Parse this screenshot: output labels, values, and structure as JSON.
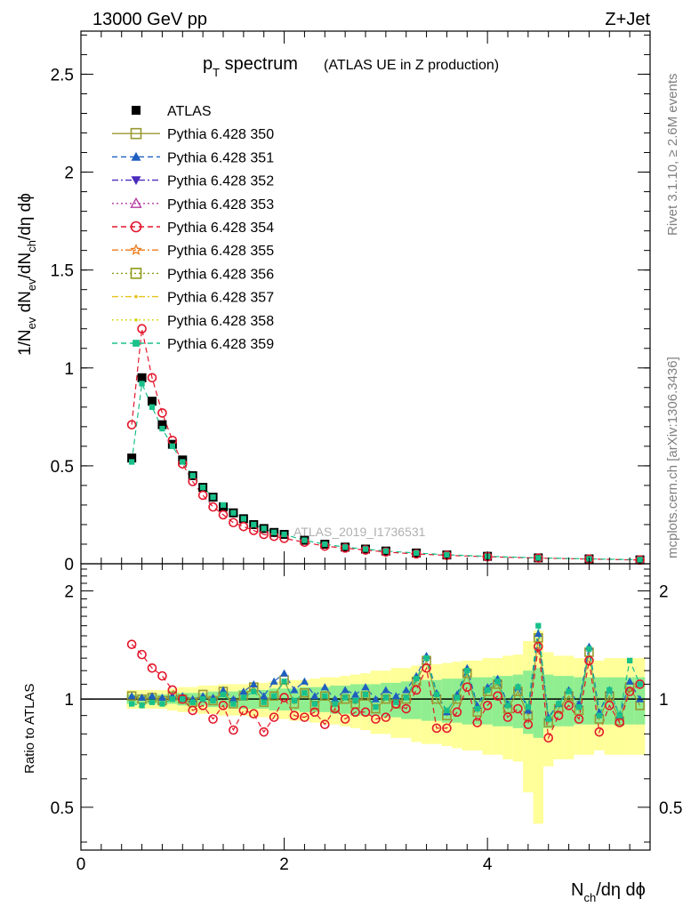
{
  "header": {
    "left": "13000 GeV pp",
    "right": "Z+Jet"
  },
  "title": {
    "main": "p",
    "main_sub": "T",
    "main_rest": " spectrum",
    "paren": "(ATLAS UE in Z production)"
  },
  "side_labels": {
    "rivet": "Rivet 3.1.10, ≥ 2.6M events",
    "mcplots": "mcplots.cern.ch [arXiv:1306.3436]"
  },
  "watermark": "ATLAS_2019_I1736531",
  "axes": {
    "top_ylabel": "1/N_{ev} dN_{ev}/dN_{ch}/dη dϕ",
    "bottom_ylabel": "Ratio to ATLAS",
    "xlabel_main": "N",
    "xlabel_sub": "ch",
    "xlabel_rest": "/dη dϕ",
    "top_yticks": [
      "0",
      "0.5",
      "1",
      "1.5",
      "2",
      "2.5"
    ],
    "bottom_yticks_left": [
      "0.5",
      "1",
      "2"
    ],
    "bottom_yticks_right": [
      "0.5",
      "1",
      "2"
    ],
    "xticks": [
      "0",
      "2",
      "4"
    ]
  },
  "legend": [
    {
      "label": "ATLAS",
      "color": "#000000",
      "marker": "filled-square",
      "line": "none"
    },
    {
      "label": "Pythia 6.428 350",
      "color": "#999933",
      "marker": "open-square",
      "line": "solid"
    },
    {
      "label": "Pythia 6.428 351",
      "color": "#1f5fbf",
      "marker": "filled-triangle-up",
      "line": "dashed"
    },
    {
      "label": "Pythia 6.428 352",
      "color": "#4b2bbd",
      "marker": "filled-triangle-down",
      "line": "dashdot"
    },
    {
      "label": "Pythia 6.428 353",
      "color": "#b43aa0",
      "marker": "open-triangle-up",
      "line": "dotted"
    },
    {
      "label": "Pythia 6.428 354",
      "color": "#e3162b",
      "marker": "open-circle",
      "line": "dashed"
    },
    {
      "label": "Pythia 6.428 355",
      "color": "#ef7b1a",
      "marker": "open-star",
      "line": "dashdot"
    },
    {
      "label": "Pythia 6.428 356",
      "color": "#8e9a1a",
      "marker": "open-square",
      "line": "dotted"
    },
    {
      "label": "Pythia 6.428 357",
      "color": "#e6c11c",
      "marker": "small-dot",
      "line": "dashdot"
    },
    {
      "label": "Pythia 6.428 358",
      "color": "#d7d81a",
      "marker": "small-dot",
      "line": "dotted"
    },
    {
      "label": "Pythia 6.428 359",
      "color": "#19c08a",
      "marker": "filled-square-small",
      "line": "dashed"
    }
  ],
  "chart_data": [
    {
      "type": "line",
      "panel": "main",
      "xlim": [
        0,
        5.6
      ],
      "ylim": [
        0,
        2.72
      ],
      "x": [
        0.5,
        0.6,
        0.7,
        0.8,
        0.9,
        1.0,
        1.1,
        1.2,
        1.3,
        1.4,
        1.5,
        1.6,
        1.7,
        1.8,
        1.9,
        2.0,
        2.2,
        2.4,
        2.6,
        2.8,
        3.0,
        3.3,
        3.6,
        4.0,
        4.5,
        5.0,
        5.5
      ],
      "series": [
        {
          "name": "ATLAS",
          "values": [
            0.54,
            0.95,
            0.83,
            0.71,
            0.61,
            0.53,
            0.45,
            0.39,
            0.34,
            0.29,
            0.26,
            0.23,
            0.2,
            0.18,
            0.16,
            0.15,
            0.12,
            0.1,
            0.085,
            0.075,
            0.065,
            0.055,
            0.045,
            0.038,
            0.03,
            0.025,
            0.02
          ]
        },
        {
          "name": "Pythia 6.428 354",
          "values": [
            0.71,
            1.2,
            0.95,
            0.77,
            0.63,
            0.51,
            0.42,
            0.35,
            0.29,
            0.25,
            0.21,
            0.19,
            0.17,
            0.15,
            0.14,
            0.13,
            0.11,
            0.09,
            0.08,
            0.07,
            0.06,
            0.05,
            0.043,
            0.036,
            0.029,
            0.024,
            0.019
          ]
        },
        {
          "name": "Pythia 6.428 359",
          "values": [
            0.52,
            0.92,
            0.8,
            0.69,
            0.6,
            0.52,
            0.45,
            0.39,
            0.34,
            0.3,
            0.26,
            0.23,
            0.2,
            0.18,
            0.16,
            0.15,
            0.12,
            0.1,
            0.085,
            0.075,
            0.065,
            0.055,
            0.046,
            0.038,
            0.03,
            0.025,
            0.021
          ]
        }
      ]
    },
    {
      "type": "line",
      "panel": "ratio",
      "xlim": [
        0,
        5.6
      ],
      "ylim": [
        0.38,
        2.38
      ],
      "log_y": true,
      "reference": 1,
      "x": [
        0.5,
        0.6,
        0.7,
        0.8,
        0.9,
        1.0,
        1.1,
        1.2,
        1.3,
        1.4,
        1.5,
        1.6,
        1.7,
        1.8,
        1.9,
        2.0,
        2.1,
        2.2,
        2.3,
        2.4,
        2.5,
        2.6,
        2.7,
        2.8,
        2.9,
        3.0,
        3.1,
        3.2,
        3.3,
        3.4,
        3.5,
        3.6,
        3.7,
        3.8,
        3.9,
        4.0,
        4.1,
        4.2,
        4.3,
        4.4,
        4.5,
        4.6,
        4.7,
        4.8,
        4.9,
        5.0,
        5.1,
        5.2,
        5.3,
        5.4,
        5.5
      ],
      "band_outer": [
        0.06,
        0.06,
        0.06,
        0.06,
        0.07,
        0.08,
        0.08,
        0.09,
        0.09,
        0.1,
        0.1,
        0.1,
        0.11,
        0.11,
        0.12,
        0.12,
        0.13,
        0.13,
        0.14,
        0.15,
        0.15,
        0.16,
        0.17,
        0.18,
        0.2,
        0.2,
        0.22,
        0.22,
        0.24,
        0.25,
        0.25,
        0.26,
        0.27,
        0.28,
        0.28,
        0.3,
        0.3,
        0.32,
        0.33,
        0.45,
        0.55,
        0.35,
        0.32,
        0.32,
        0.3,
        0.3,
        0.28,
        0.3,
        0.3,
        0.3,
        0.3
      ],
      "band_inner": [
        0.03,
        0.03,
        0.03,
        0.03,
        0.03,
        0.04,
        0.04,
        0.04,
        0.05,
        0.05,
        0.05,
        0.06,
        0.06,
        0.06,
        0.07,
        0.07,
        0.07,
        0.08,
        0.08,
        0.08,
        0.09,
        0.09,
        0.1,
        0.1,
        0.1,
        0.11,
        0.11,
        0.12,
        0.12,
        0.13,
        0.13,
        0.14,
        0.14,
        0.15,
        0.15,
        0.15,
        0.16,
        0.16,
        0.17,
        0.2,
        0.22,
        0.17,
        0.16,
        0.16,
        0.15,
        0.15,
        0.15,
        0.15,
        0.15,
        0.15,
        0.15
      ],
      "series": [
        {
          "name": "Pythia 6.428 350",
          "values": [
            1.02,
            1.0,
            1.01,
            0.99,
            1.02,
            1.0,
            0.98,
            1.03,
            0.99,
            1.05,
            0.97,
            1.02,
            1.08,
            0.98,
            1.02,
            1.13,
            0.97,
            1.04,
            0.96,
            1.02,
            0.95,
            1.0,
            0.97,
            1.02,
            0.94,
            1.0,
            0.97,
            1.0,
            1.12,
            1.28,
            1.0,
            0.9,
            1.0,
            1.18,
            0.92,
            1.05,
            1.1,
            0.94,
            1.05,
            0.9,
            1.48,
            0.86,
            0.94,
            1.02,
            0.93,
            1.35,
            0.88,
            1.02,
            0.87,
            1.08,
            0.96
          ]
        },
        {
          "name": "Pythia 6.428 351",
          "values": [
            1.02,
            1.01,
            1.02,
            1.01,
            1.02,
            1.02,
            1.0,
            1.02,
            1.01,
            1.06,
            1.0,
            1.05,
            1.1,
            1.02,
            1.12,
            1.18,
            1.06,
            1.12,
            1.02,
            1.08,
            1.0,
            1.06,
            1.03,
            1.08,
            1.0,
            1.06,
            1.02,
            1.06,
            1.16,
            1.32,
            1.04,
            0.92,
            1.03,
            1.22,
            0.96,
            1.08,
            1.14,
            0.97,
            1.08,
            0.93,
            1.52,
            0.89,
            0.97,
            1.06,
            0.97,
            1.4,
            0.92,
            1.06,
            0.9,
            1.12,
            1.0
          ]
        },
        {
          "name": "Pythia 6.428 354",
          "values": [
            1.42,
            1.33,
            1.22,
            1.16,
            1.06,
            1.0,
            0.93,
            0.96,
            0.88,
            0.96,
            0.82,
            0.93,
            0.91,
            0.81,
            0.89,
            1.01,
            0.9,
            0.89,
            0.92,
            0.85,
            0.94,
            0.88,
            0.92,
            0.92,
            0.88,
            0.89,
            0.97,
            0.94,
            1.06,
            1.22,
            0.83,
            0.83,
            0.92,
            1.08,
            0.86,
            0.96,
            1.02,
            0.89,
            0.94,
            0.85,
            1.4,
            0.78,
            0.9,
            0.96,
            0.88,
            1.28,
            0.81,
            0.96,
            0.86,
            1.05,
            1.1
          ]
        },
        {
          "name": "Pythia 6.428 359",
          "values": [
            0.97,
            0.96,
            0.98,
            0.97,
            1.0,
            1.0,
            0.98,
            1.0,
            0.99,
            1.03,
            0.97,
            1.01,
            1.05,
            0.98,
            1.02,
            1.12,
            0.99,
            1.04,
            0.97,
            1.02,
            0.97,
            1.01,
            0.99,
            1.03,
            0.95,
            1.01,
            0.98,
            1.01,
            1.14,
            1.3,
            1.03,
            0.93,
            1.01,
            1.2,
            0.94,
            1.06,
            1.12,
            0.96,
            1.08,
            0.95,
            1.6,
            0.88,
            0.97,
            1.05,
            0.95,
            1.38,
            0.9,
            1.06,
            0.9,
            1.28,
            1.1
          ]
        }
      ]
    }
  ]
}
